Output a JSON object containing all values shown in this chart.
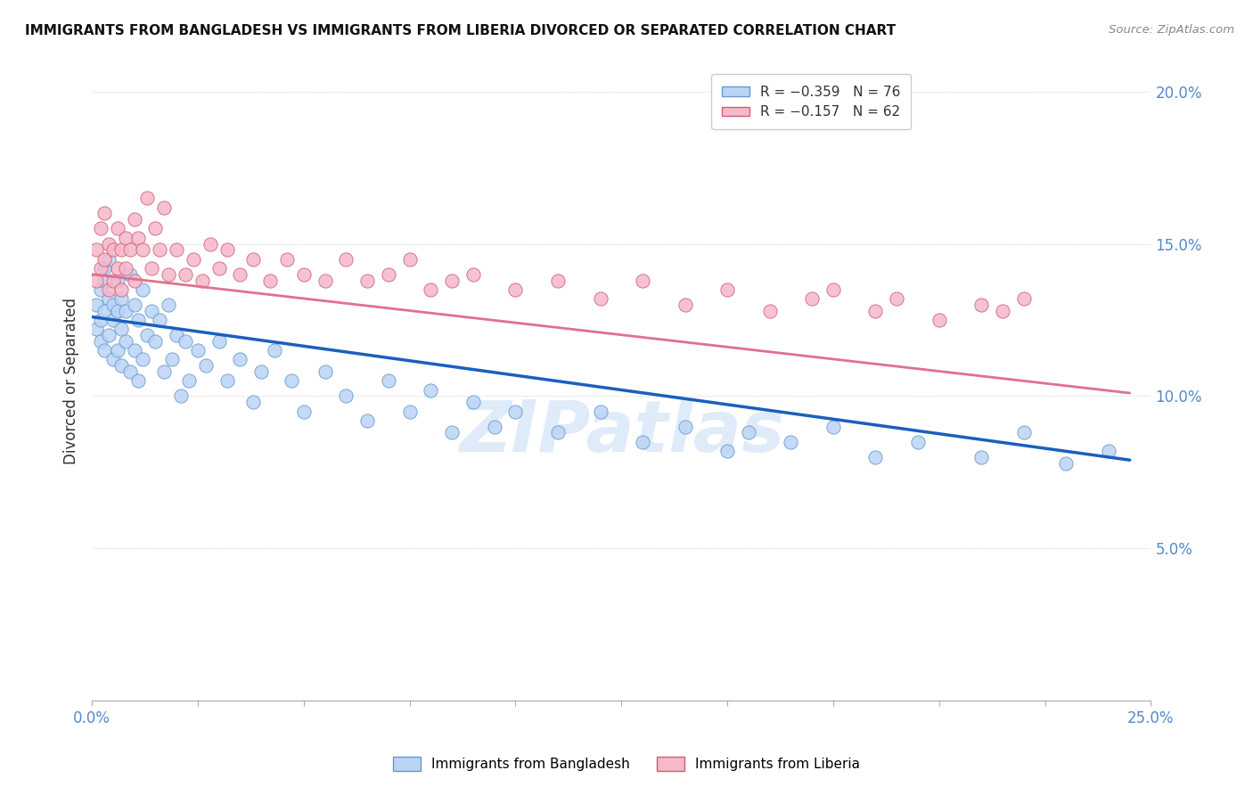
{
  "title": "IMMIGRANTS FROM BANGLADESH VS IMMIGRANTS FROM LIBERIA DIVORCED OR SEPARATED CORRELATION CHART",
  "source": "Source: ZipAtlas.com",
  "ylabel": "Divorced or Separated",
  "xlim": [
    0.0,
    0.25
  ],
  "ylim": [
    0.0,
    0.21
  ],
  "x_tick_positions": [
    0.0,
    0.025,
    0.05,
    0.075,
    0.1,
    0.125,
    0.15,
    0.175,
    0.2,
    0.225,
    0.25
  ],
  "x_tick_labels_show": {
    "0.0": "0.0%",
    "0.25": "25.0%"
  },
  "y_ticks": [
    0.05,
    0.1,
    0.15,
    0.2
  ],
  "y_tick_labels": [
    "5.0%",
    "10.0%",
    "15.0%",
    "20.0%"
  ],
  "series_bangladesh": {
    "color": "#bad4f5",
    "border_color": "#6699cc",
    "x": [
      0.001,
      0.001,
      0.002,
      0.002,
      0.002,
      0.003,
      0.003,
      0.003,
      0.003,
      0.004,
      0.004,
      0.004,
      0.005,
      0.005,
      0.005,
      0.006,
      0.006,
      0.006,
      0.007,
      0.007,
      0.007,
      0.008,
      0.008,
      0.009,
      0.009,
      0.01,
      0.01,
      0.011,
      0.011,
      0.012,
      0.012,
      0.013,
      0.014,
      0.015,
      0.016,
      0.017,
      0.018,
      0.019,
      0.02,
      0.021,
      0.022,
      0.023,
      0.025,
      0.027,
      0.03,
      0.032,
      0.035,
      0.038,
      0.04,
      0.043,
      0.047,
      0.05,
      0.055,
      0.06,
      0.065,
      0.07,
      0.075,
      0.08,
      0.085,
      0.09,
      0.095,
      0.1,
      0.11,
      0.12,
      0.13,
      0.14,
      0.15,
      0.155,
      0.165,
      0.175,
      0.185,
      0.195,
      0.21,
      0.22,
      0.23,
      0.24
    ],
    "y": [
      0.13,
      0.122,
      0.135,
      0.118,
      0.125,
      0.142,
      0.128,
      0.115,
      0.138,
      0.132,
      0.12,
      0.145,
      0.125,
      0.112,
      0.13,
      0.128,
      0.115,
      0.138,
      0.132,
      0.122,
      0.11,
      0.128,
      0.118,
      0.14,
      0.108,
      0.13,
      0.115,
      0.125,
      0.105,
      0.135,
      0.112,
      0.12,
      0.128,
      0.118,
      0.125,
      0.108,
      0.13,
      0.112,
      0.12,
      0.1,
      0.118,
      0.105,
      0.115,
      0.11,
      0.118,
      0.105,
      0.112,
      0.098,
      0.108,
      0.115,
      0.105,
      0.095,
      0.108,
      0.1,
      0.092,
      0.105,
      0.095,
      0.102,
      0.088,
      0.098,
      0.09,
      0.095,
      0.088,
      0.095,
      0.085,
      0.09,
      0.082,
      0.088,
      0.085,
      0.09,
      0.08,
      0.085,
      0.08,
      0.088,
      0.078,
      0.082
    ]
  },
  "series_liberia": {
    "color": "#f5b8cc",
    "border_color": "#d06070",
    "x": [
      0.001,
      0.001,
      0.002,
      0.002,
      0.003,
      0.003,
      0.004,
      0.004,
      0.005,
      0.005,
      0.006,
      0.006,
      0.007,
      0.007,
      0.008,
      0.008,
      0.009,
      0.01,
      0.01,
      0.011,
      0.012,
      0.013,
      0.014,
      0.015,
      0.016,
      0.017,
      0.018,
      0.02,
      0.022,
      0.024,
      0.026,
      0.028,
      0.03,
      0.032,
      0.035,
      0.038,
      0.042,
      0.046,
      0.05,
      0.055,
      0.06,
      0.065,
      0.07,
      0.075,
      0.08,
      0.085,
      0.09,
      0.1,
      0.11,
      0.12,
      0.13,
      0.14,
      0.15,
      0.16,
      0.17,
      0.175,
      0.185,
      0.19,
      0.2,
      0.21,
      0.215,
      0.22
    ],
    "y": [
      0.148,
      0.138,
      0.155,
      0.142,
      0.16,
      0.145,
      0.15,
      0.135,
      0.148,
      0.138,
      0.155,
      0.142,
      0.148,
      0.135,
      0.152,
      0.142,
      0.148,
      0.158,
      0.138,
      0.152,
      0.148,
      0.165,
      0.142,
      0.155,
      0.148,
      0.162,
      0.14,
      0.148,
      0.14,
      0.145,
      0.138,
      0.15,
      0.142,
      0.148,
      0.14,
      0.145,
      0.138,
      0.145,
      0.14,
      0.138,
      0.145,
      0.138,
      0.14,
      0.145,
      0.135,
      0.138,
      0.14,
      0.135,
      0.138,
      0.132,
      0.138,
      0.13,
      0.135,
      0.128,
      0.132,
      0.135,
      0.128,
      0.132,
      0.125,
      0.13,
      0.128,
      0.132
    ]
  },
  "trendline_bangladesh": {
    "color": "#1a5fbe",
    "x_start": 0.0,
    "y_start": 0.126,
    "x_end": 0.245,
    "y_end": 0.079
  },
  "trendline_liberia": {
    "color": "#e07090",
    "x_start": 0.0,
    "y_start": 0.14,
    "x_end": 0.245,
    "y_end": 0.101
  },
  "watermark": "ZIPatlas",
  "background_color": "#ffffff",
  "grid_color": "#dedede",
  "tick_color": "#5588cc"
}
